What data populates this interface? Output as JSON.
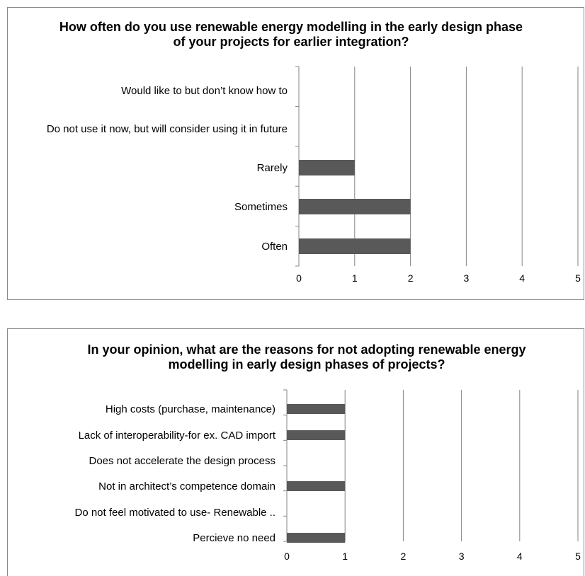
{
  "chart_data": [
    {
      "type": "bar",
      "orientation": "horizontal",
      "title": "How often do you use renewable energy modelling in the early design phase of your projects for earlier integration?",
      "categories": [
        "Would like to but don’t know how to",
        "Do not use it now, but will consider using it in future",
        "Rarely",
        "Sometimes",
        "Often"
      ],
      "values": [
        0,
        0,
        1,
        2,
        2
      ],
      "xlim": [
        0,
        5
      ],
      "xticks": [
        "0",
        "1",
        "2",
        "3",
        "4",
        "5"
      ],
      "grid": true,
      "legend": "none",
      "bar_color": "#595959",
      "grid_color": "#868686"
    },
    {
      "type": "bar",
      "orientation": "horizontal",
      "title": "In your opinion, what are the reasons for not adopting renewable energy modelling in early design phases of projects?",
      "categories": [
        "High costs (purchase, maintenance)",
        "Lack of interoperability-for ex.  CAD import",
        "Does not accelerate the design process",
        "Not in architect’s competence domain",
        "Do not feel motivated to use- Renewable ..",
        "Percieve no need"
      ],
      "values": [
        1,
        1,
        0,
        1,
        0,
        1
      ],
      "xlim": [
        0,
        5
      ],
      "xticks": [
        "0",
        "1",
        "2",
        "3",
        "4",
        "5"
      ],
      "grid": true,
      "legend": "none",
      "bar_color": "#595959",
      "grid_color": "#868686"
    }
  ]
}
